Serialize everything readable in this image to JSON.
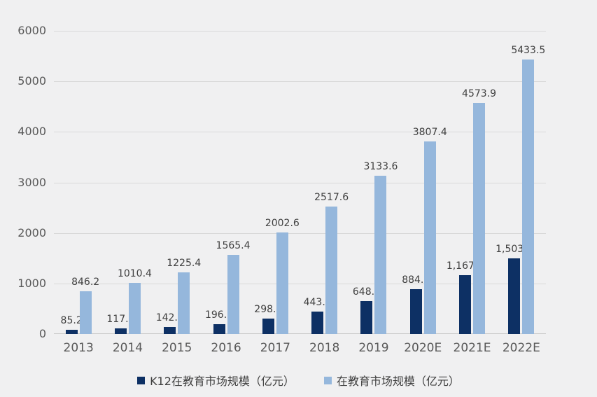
{
  "chart_data": {
    "type": "bar",
    "categories": [
      "2013",
      "2014",
      "2015",
      "2016",
      "2017",
      "2018",
      "2019",
      "2020E",
      "2021E",
      "2022E"
    ],
    "series": [
      {
        "name": "K12在教育市场规模（亿元）",
        "color": "#0d3064",
        "values": [
          85.2,
          117.1,
          142.2,
          196.7,
          298.7,
          443.2,
          648.8,
          884.3,
          1167.4,
          1503.4
        ],
        "labels": [
          "85.2",
          "117.1",
          "142.2",
          "196.7",
          "298.7",
          "443.2",
          "648.8",
          "884.3",
          "1,167.4",
          "1,503.4"
        ]
      },
      {
        "name": "在教育市场规模（亿元）",
        "color": "#95b7dc",
        "values": [
          846.2,
          1010.4,
          1225.4,
          1565.4,
          2002.6,
          2517.6,
          3133.6,
          3807.4,
          4573.9,
          5433.5
        ],
        "labels": [
          "846.2",
          "1010.4",
          "1225.4",
          "1565.4",
          "2002.6",
          "2517.6",
          "3133.6",
          "3807.4",
          "4573.9",
          "5433.5"
        ]
      }
    ],
    "ylim": [
      0,
      6000
    ],
    "yticks": [
      0,
      1000,
      2000,
      3000,
      4000,
      5000,
      6000
    ],
    "ytick_labels": [
      "0",
      "1000",
      "2000",
      "3000",
      "4000",
      "5000",
      "6000"
    ],
    "grid": true,
    "legend_position": "bottom"
  },
  "style": {
    "background": "#f0f0f1",
    "gridline_color": "#d9d9d9",
    "baseline_color": "#cccccc",
    "axis_label_color": "#595959",
    "data_label_color": "#404040",
    "legend_label_color": "#404040"
  }
}
